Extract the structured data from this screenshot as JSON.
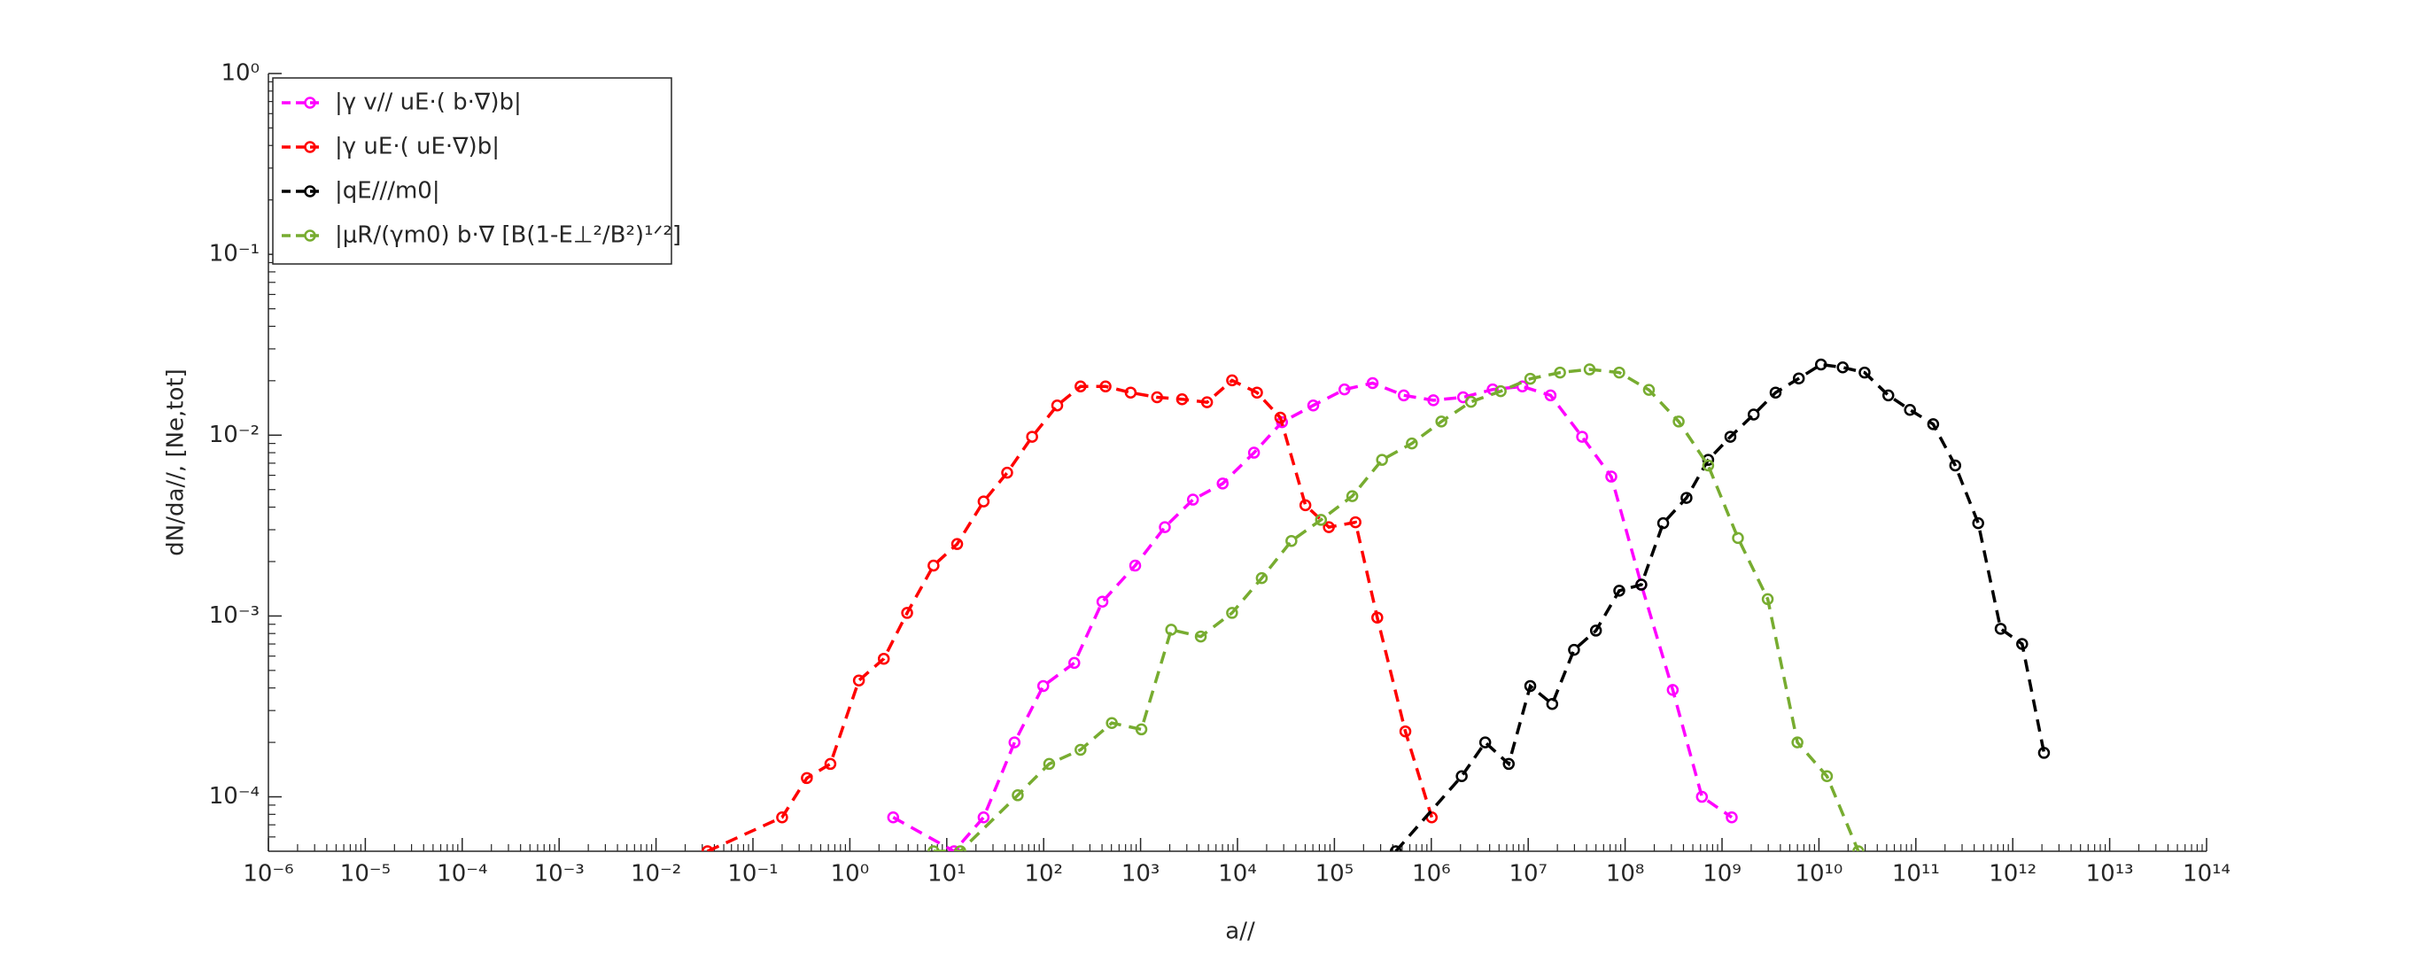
{
  "chart_data": {
    "type": "line",
    "xlabel": "a//",
    "ylabel": "dN/da//, [Ne,tot]",
    "xscale": "log",
    "yscale": "log",
    "xlim": [
      1e-06,
      100000000000000
    ],
    "ylim": [
      5e-05,
      1
    ],
    "xticks": [
      {
        "value": 1e-06,
        "label": "10⁻⁶"
      },
      {
        "value": 1e-05,
        "label": "10⁻⁵"
      },
      {
        "value": 0.0001,
        "label": "10⁻⁴"
      },
      {
        "value": 0.001,
        "label": "10⁻³"
      },
      {
        "value": 0.01,
        "label": "10⁻²"
      },
      {
        "value": 0.1,
        "label": "10⁻¹"
      },
      {
        "value": 1,
        "label": "10⁰"
      },
      {
        "value": 10,
        "label": "10¹"
      },
      {
        "value": 100,
        "label": "10²"
      },
      {
        "value": 1000,
        "label": "10³"
      },
      {
        "value": 10000,
        "label": "10⁴"
      },
      {
        "value": 100000,
        "label": "10⁵"
      },
      {
        "value": 1000000,
        "label": "10⁶"
      },
      {
        "value": 10000000,
        "label": "10⁷"
      },
      {
        "value": 100000000,
        "label": "10⁸"
      },
      {
        "value": 1000000000,
        "label": "10⁹"
      },
      {
        "value": 10000000000,
        "label": "10¹⁰"
      },
      {
        "value": 100000000000,
        "label": "10¹¹"
      },
      {
        "value": 1000000000000,
        "label": "10¹²"
      },
      {
        "value": 10000000000000,
        "label": "10¹³"
      },
      {
        "value": 100000000000000,
        "label": "10¹⁴"
      }
    ],
    "yticks": [
      {
        "value": 0.0001,
        "label": "10⁻⁴"
      },
      {
        "value": 0.001,
        "label": "10⁻³"
      },
      {
        "value": 0.01,
        "label": "10⁻²"
      },
      {
        "value": 0.1,
        "label": "10⁻¹"
      },
      {
        "value": 1,
        "label": "10⁰"
      }
    ],
    "legend": "northwest",
    "series": [
      {
        "name": "|γ v// uE·( b·∇)b|",
        "color": "#ff00ff",
        "x": [
          2.8,
          11.9,
          24,
          50,
          99,
          207,
          404,
          880,
          1780,
          3470,
          7030,
          14800,
          28800,
          60500,
          127000,
          248000,
          520000,
          1050000,
          2130000,
          4300000,
          8700000,
          17000000,
          36000000,
          72000000,
          147000000,
          310000000,
          620000000,
          1260000000
        ],
        "values": [
          7.7e-05,
          5e-05,
          7.7e-05,
          0.0002,
          0.00041,
          0.00055,
          0.0012,
          0.0019,
          0.0031,
          0.0044,
          0.0054,
          0.008,
          0.0118,
          0.0146,
          0.0179,
          0.0194,
          0.0166,
          0.0156,
          0.0162,
          0.0179,
          0.0186,
          0.0166,
          0.0098,
          0.0059,
          0.00149,
          0.00039,
          0.0001,
          7.7e-05
        ]
      },
      {
        "name": "|γ uE·( uE·∇)b|",
        "color": "#ff0000",
        "x": [
          0.034,
          0.2,
          0.36,
          0.63,
          1.24,
          2.24,
          3.9,
          7.3,
          12.8,
          24,
          42,
          76,
          138,
          240,
          435,
          790,
          1480,
          2680,
          4850,
          8800,
          15900,
          27700,
          50200,
          87700,
          165000,
          277000,
          540000,
          1010000
        ],
        "values": [
          5e-05,
          7.7e-05,
          0.000127,
          0.000152,
          0.00044,
          0.00058,
          0.00104,
          0.0019,
          0.0025,
          0.0043,
          0.0062,
          0.0098,
          0.0146,
          0.0186,
          0.0186,
          0.0172,
          0.0162,
          0.0158,
          0.0152,
          0.0201,
          0.0172,
          0.0125,
          0.0041,
          0.0031,
          0.0033,
          0.00098,
          0.00023,
          7.7e-05
        ]
      },
      {
        "name": "|qE///m0|",
        "color": "#000000",
        "x": [
          430000,
          2060000,
          3600000,
          6300000,
          10500000,
          17700000,
          29700000,
          50000000,
          87000000,
          147000000,
          247000000,
          430000000,
          720000000,
          1220000000,
          2120000000,
          3570000000,
          6200000000,
          10500000000,
          17600000000,
          29600000000,
          52000000000,
          87000000000,
          151000000000,
          255000000000,
          440000000000,
          750000000000,
          1250000000000,
          2100000000000
        ],
        "values": [
          5e-05,
          0.00013,
          0.0002,
          0.000152,
          0.00041,
          0.000326,
          0.00065,
          0.00083,
          0.00138,
          0.00149,
          0.00326,
          0.0045,
          0.0073,
          0.0098,
          0.013,
          0.0172,
          0.0206,
          0.0246,
          0.0237,
          0.0222,
          0.0166,
          0.0138,
          0.0115,
          0.0068,
          0.00326,
          0.00085,
          0.0007,
          0.000175
        ]
      },
      {
        "name": "|μR/(γm0) b·∇ [B(1-E⊥²/B²)¹ᐟ²]",
        "color": "#77ac30",
        "x": [
          7.3,
          13.8,
          54,
          114,
          240,
          505,
          1020,
          2070,
          4180,
          8790,
          17800,
          36000,
          72800,
          153000,
          310000,
          630000,
          1270000,
          2570000,
          5200000,
          10500000,
          21300000,
          43000000,
          87000000,
          176000000,
          357000000,
          720000000,
          1460000000,
          2960000000,
          6000000000,
          12100000000,
          25500000000
        ],
        "values": [
          5e-05,
          5e-05,
          0.000102,
          0.000152,
          0.000182,
          0.000256,
          0.000236,
          0.00084,
          0.00077,
          0.00104,
          0.00162,
          0.0026,
          0.0034,
          0.0046,
          0.0073,
          0.009,
          0.0119,
          0.0153,
          0.0175,
          0.0205,
          0.0222,
          0.0231,
          0.0222,
          0.0178,
          0.0119,
          0.0068,
          0.0027,
          0.00124,
          0.0002,
          0.00013,
          5e-05
        ]
      }
    ]
  }
}
